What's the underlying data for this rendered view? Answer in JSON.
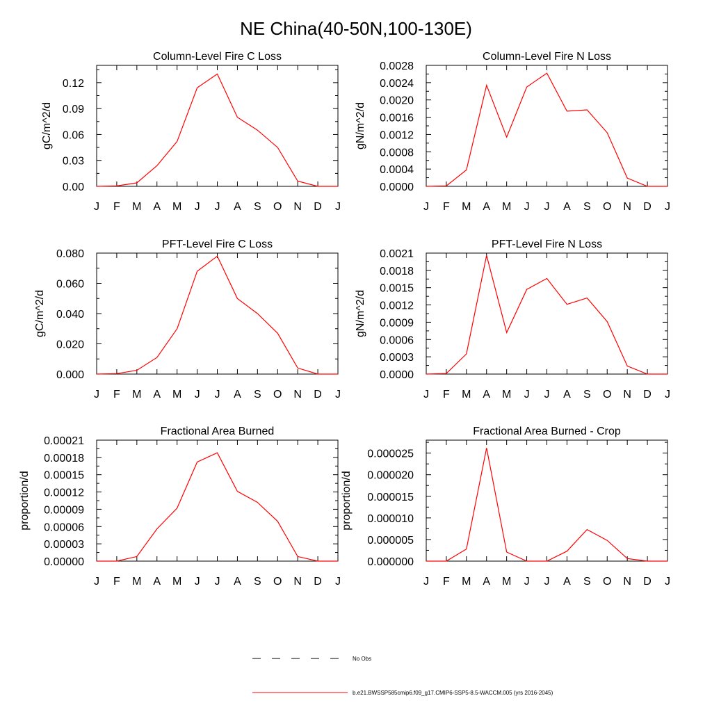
{
  "figure": {
    "title": "NE China(40-50N,100-130E)"
  },
  "legend": {
    "obs_label": "No Obs",
    "model_label": "b.e21.BWSSP585cmip6.f09_g17.CMIP6-SSP5-8.5-WACCM.005 (yrs 2016-2045)",
    "model_color": "#ff0000",
    "obs_color": "#000000"
  },
  "chart_data": [
    {
      "type": "line",
      "title": "Column-Level Fire C Loss",
      "ylabel": "gC/m^2/d",
      "categories": [
        "J",
        "F",
        "M",
        "A",
        "M",
        "J",
        "J",
        "A",
        "S",
        "O",
        "N",
        "D",
        "J"
      ],
      "ylim": [
        0,
        0.14
      ],
      "yticks": [
        "0.00",
        "0.03",
        "0.06",
        "0.09",
        "0.12"
      ],
      "series": [
        {
          "values": [
            0.0,
            0.0005,
            0.004,
            0.024,
            0.052,
            0.114,
            0.13,
            0.08,
            0.065,
            0.045,
            0.006,
            0.0,
            0.0
          ]
        }
      ]
    },
    {
      "type": "line",
      "title": "Column-Level Fire N Loss",
      "ylabel": "gN/m^2/d",
      "categories": [
        "J",
        "F",
        "M",
        "A",
        "M",
        "J",
        "J",
        "A",
        "S",
        "O",
        "N",
        "D",
        "J"
      ],
      "ylim": [
        0,
        0.0028
      ],
      "yticks": [
        "0.0000",
        "0.0004",
        "0.0008",
        "0.0012",
        "0.0016",
        "0.0020",
        "0.0024",
        "0.0028"
      ],
      "series": [
        {
          "values": [
            0.0,
            1e-05,
            0.00038,
            0.00234,
            0.00114,
            0.0023,
            0.00262,
            0.00174,
            0.00177,
            0.00124,
            0.00019,
            0.0,
            0.0
          ]
        }
      ]
    },
    {
      "type": "line",
      "title": "PFT-Level Fire C Loss",
      "ylabel": "gC/m^2/d",
      "categories": [
        "J",
        "F",
        "M",
        "A",
        "M",
        "J",
        "J",
        "A",
        "S",
        "O",
        "N",
        "D",
        "J"
      ],
      "ylim": [
        0,
        0.08
      ],
      "yticks": [
        "0.000",
        "0.020",
        "0.040",
        "0.060",
        "0.080"
      ],
      "series": [
        {
          "values": [
            0.0,
            0.0003,
            0.0025,
            0.011,
            0.03,
            0.068,
            0.078,
            0.05,
            0.04,
            0.027,
            0.004,
            0.0,
            0.0
          ]
        }
      ]
    },
    {
      "type": "line",
      "title": "PFT-Level Fire N Loss",
      "ylabel": "gN/m^2/d",
      "categories": [
        "J",
        "F",
        "M",
        "A",
        "M",
        "J",
        "J",
        "A",
        "S",
        "O",
        "N",
        "D",
        "J"
      ],
      "ylim": [
        0,
        0.0021
      ],
      "yticks": [
        "0.0000",
        "0.0003",
        "0.0006",
        "0.0009",
        "0.0012",
        "0.0015",
        "0.0018",
        "0.0021"
      ],
      "series": [
        {
          "values": [
            0.0,
            1e-05,
            0.00035,
            0.00206,
            0.00072,
            0.00147,
            0.00166,
            0.00121,
            0.00132,
            0.00091,
            0.00014,
            0.0,
            0.0
          ]
        }
      ]
    },
    {
      "type": "line",
      "title": "Fractional Area Burned",
      "ylabel": "proportion/d",
      "categories": [
        "J",
        "F",
        "M",
        "A",
        "M",
        "J",
        "J",
        "A",
        "S",
        "O",
        "N",
        "D",
        "J"
      ],
      "ylim": [
        0,
        0.00021
      ],
      "yticks": [
        "0.00000",
        "0.00003",
        "0.00006",
        "0.00009",
        "0.00012",
        "0.00015",
        "0.00018",
        "0.00021"
      ],
      "series": [
        {
          "values": [
            0.0,
            0.0,
            8e-06,
            5.6e-05,
            9.2e-05,
            0.000172,
            0.000188,
            0.000121,
            0.000102,
            6.9e-05,
            8e-06,
            0.0,
            0.0
          ]
        }
      ]
    },
    {
      "type": "line",
      "title": "Fractional Area Burned - Crop",
      "ylabel": "proportion/d",
      "categories": [
        "J",
        "F",
        "M",
        "A",
        "M",
        "J",
        "J",
        "A",
        "S",
        "O",
        "N",
        "D",
        "J"
      ],
      "ylim": [
        0,
        2.8e-05
      ],
      "yticks": [
        "0.000000",
        "0.000005",
        "0.000010",
        "0.000015",
        "0.000020",
        "0.000025"
      ],
      "series": [
        {
          "values": [
            0.0,
            0.0,
            2.8e-06,
            2.62e-05,
            2.1e-06,
            0.0,
            0.0,
            2.3e-06,
            7.3e-06,
            4.8e-06,
            6e-07,
            0.0,
            0.0
          ]
        }
      ]
    }
  ]
}
